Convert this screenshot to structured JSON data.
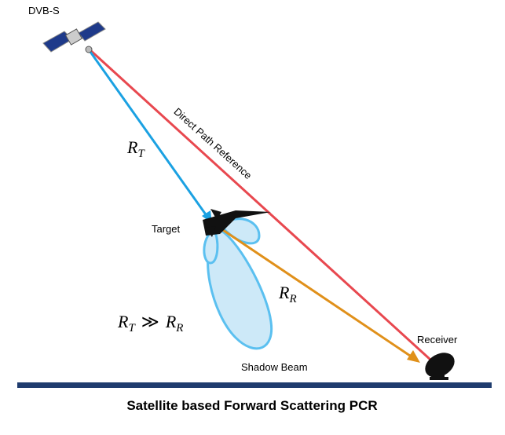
{
  "satellite_label": "DVB-S",
  "direct_path_label": "Direct Path Reference",
  "range_tx": {
    "symbol": "R",
    "subscript": "T"
  },
  "target_label": "Target",
  "range_rx": {
    "symbol": "R",
    "subscript": "R"
  },
  "relation": {
    "left": {
      "symbol": "R",
      "subscript": "T"
    },
    "operator": "≫",
    "right": {
      "symbol": "R",
      "subscript": "R"
    }
  },
  "beam_label": "Shadow Beam",
  "receiver_label": "Receiver",
  "caption": "Satellite based Forward Scattering PCR"
}
